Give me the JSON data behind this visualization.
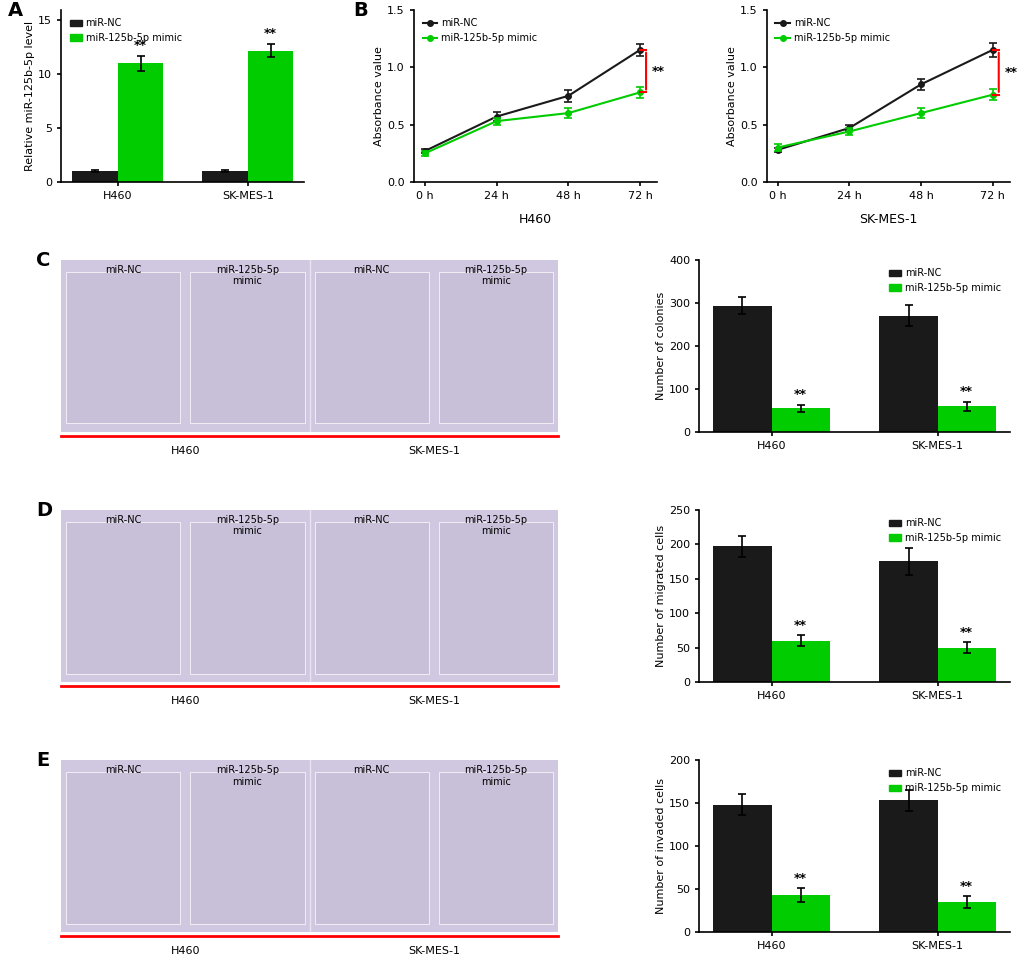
{
  "panel_A": {
    "categories": [
      "H460",
      "SK-MES-1"
    ],
    "miR_NC": [
      1.0,
      1.0
    ],
    "miR_NC_err": [
      0.08,
      0.08
    ],
    "miR_mimic": [
      11.0,
      12.2
    ],
    "miR_mimic_err": [
      0.7,
      0.6
    ],
    "ylabel": "Relative miR-125b-5p level",
    "ylim": [
      0,
      16
    ],
    "yticks": [
      0,
      5,
      10,
      15
    ],
    "bar_width": 0.35,
    "color_NC": "#1a1a1a",
    "color_mimic": "#00cc00",
    "title": "A"
  },
  "panel_B_H460": {
    "x": [
      0,
      24,
      48,
      72
    ],
    "miR_NC": [
      0.27,
      0.57,
      0.75,
      1.15
    ],
    "miR_NC_err": [
      0.02,
      0.04,
      0.05,
      0.05
    ],
    "miR_mimic": [
      0.25,
      0.53,
      0.6,
      0.78
    ],
    "miR_mimic_err": [
      0.02,
      0.03,
      0.04,
      0.05
    ],
    "ylabel": "Absorbance value",
    "ylim": [
      0.0,
      1.5
    ],
    "yticks": [
      0.0,
      0.5,
      1.0,
      1.5
    ],
    "xlabel_label": "H460",
    "color_NC": "#1a1a1a",
    "color_mimic": "#00cc00",
    "title": "B"
  },
  "panel_B_SKMES1": {
    "x": [
      0,
      24,
      48,
      72
    ],
    "miR_NC": [
      0.28,
      0.47,
      0.85,
      1.15
    ],
    "miR_NC_err": [
      0.02,
      0.03,
      0.05,
      0.06
    ],
    "miR_mimic": [
      0.3,
      0.44,
      0.6,
      0.76
    ],
    "miR_mimic_err": [
      0.03,
      0.03,
      0.04,
      0.05
    ],
    "ylabel": "Absorbance value",
    "ylim": [
      0.0,
      1.5
    ],
    "yticks": [
      0.0,
      0.5,
      1.0,
      1.5
    ],
    "xlabel_label": "SK-MES-1",
    "color_NC": "#1a1a1a",
    "color_mimic": "#00cc00"
  },
  "panel_C_bar": {
    "categories": [
      "H460",
      "SK-MES-1"
    ],
    "miR_NC": [
      293,
      270
    ],
    "miR_NC_err": [
      20,
      25
    ],
    "miR_mimic": [
      55,
      60
    ],
    "miR_mimic_err": [
      8,
      10
    ],
    "ylabel": "Number of colonies",
    "ylim": [
      0,
      400
    ],
    "yticks": [
      0,
      100,
      200,
      300,
      400
    ],
    "bar_width": 0.35,
    "color_NC": "#1a1a1a",
    "color_mimic": "#00cc00",
    "title": "C"
  },
  "panel_D_bar": {
    "categories": [
      "H460",
      "SK-MES-1"
    ],
    "miR_NC": [
      197,
      175
    ],
    "miR_NC_err": [
      15,
      20
    ],
    "miR_mimic": [
      60,
      50
    ],
    "miR_mimic_err": [
      8,
      8
    ],
    "ylabel": "Number of migrated cells",
    "ylim": [
      0,
      250
    ],
    "yticks": [
      0,
      50,
      100,
      150,
      200,
      250
    ],
    "bar_width": 0.35,
    "color_NC": "#1a1a1a",
    "color_mimic": "#00cc00",
    "title": "D"
  },
  "panel_E_bar": {
    "categories": [
      "H460",
      "SK-MES-1"
    ],
    "miR_NC": [
      148,
      153
    ],
    "miR_NC_err": [
      12,
      12
    ],
    "miR_mimic": [
      43,
      35
    ],
    "miR_mimic_err": [
      8,
      7
    ],
    "ylabel": "Number of invaded cells",
    "ylim": [
      0,
      200
    ],
    "yticks": [
      0,
      50,
      100,
      150,
      200
    ],
    "bar_width": 0.35,
    "color_NC": "#1a1a1a",
    "color_mimic": "#00cc00",
    "title": "E"
  },
  "legend_NC": "miR-NC",
  "legend_mimic": "miR-125b-5p mimic",
  "sig_text": "**",
  "color_NC": "#1a1a1a",
  "color_mimic": "#00cc00",
  "background": "#ffffff",
  "image_placeholder_color": "#d0c8e0",
  "red_line_color": "#ff0000"
}
